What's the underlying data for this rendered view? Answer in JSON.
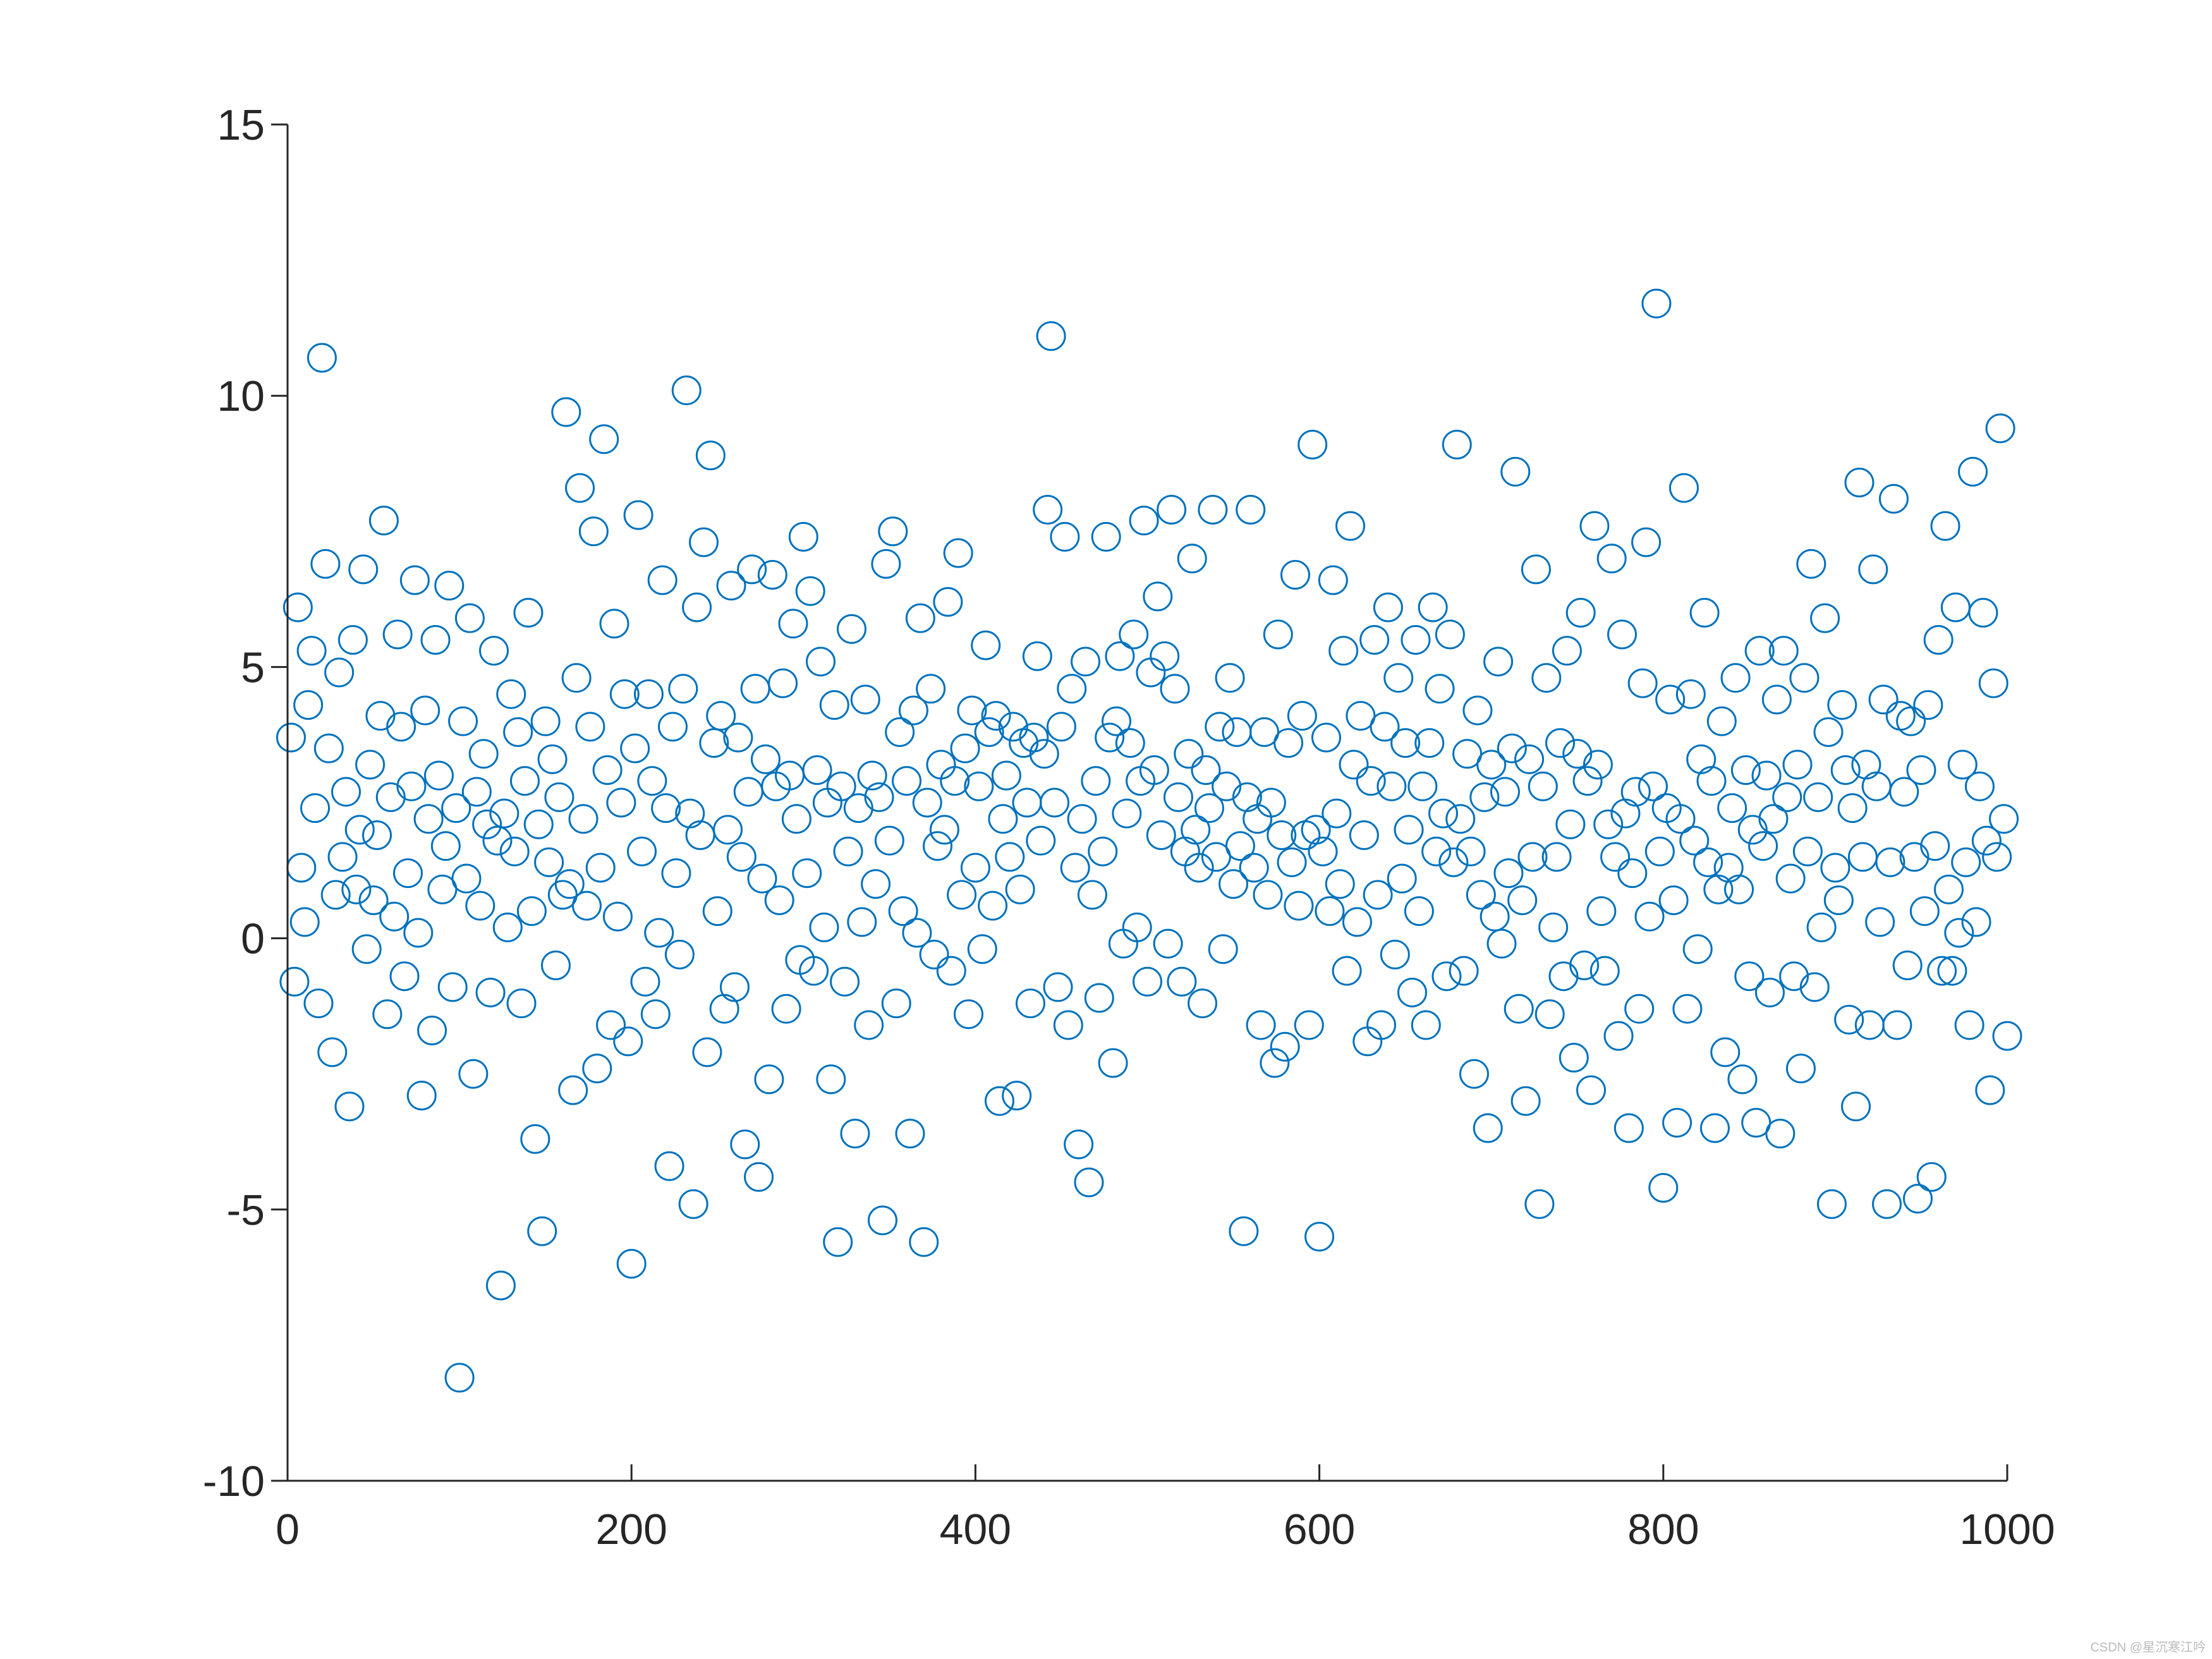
{
  "chart_data": {
    "type": "scatter",
    "x": [
      2,
      4,
      6,
      8,
      10,
      12,
      14,
      16,
      18,
      20,
      22,
      24,
      26,
      28,
      30,
      32,
      34,
      36,
      38,
      40,
      42,
      44,
      46,
      48,
      50,
      52,
      54,
      56,
      58,
      60,
      62,
      64,
      66,
      68,
      70,
      72,
      74,
      76,
      78,
      80,
      82,
      84,
      86,
      88,
      90,
      92,
      94,
      96,
      98,
      100,
      102,
      104,
      106,
      108,
      110,
      112,
      114,
      116,
      118,
      120,
      122,
      124,
      126,
      128,
      130,
      132,
      134,
      136,
      138,
      140,
      142,
      144,
      146,
      148,
      150,
      152,
      154,
      156,
      158,
      160,
      162,
      164,
      166,
      168,
      170,
      172,
      174,
      176,
      178,
      180,
      182,
      184,
      186,
      188,
      190,
      192,
      194,
      196,
      198,
      200,
      202,
      204,
      206,
      208,
      210,
      212,
      214,
      216,
      218,
      220,
      222,
      224,
      226,
      228,
      230,
      232,
      234,
      236,
      238,
      240,
      242,
      244,
      246,
      248,
      250,
      252,
      254,
      256,
      258,
      260,
      262,
      264,
      266,
      268,
      270,
      272,
      274,
      276,
      278,
      280,
      282,
      284,
      286,
      288,
      290,
      292,
      294,
      296,
      298,
      300,
      302,
      304,
      306,
      308,
      310,
      312,
      314,
      316,
      318,
      320,
      322,
      324,
      326,
      328,
      330,
      332,
      334,
      336,
      338,
      340,
      342,
      344,
      346,
      348,
      350,
      352,
      354,
      356,
      358,
      360,
      362,
      364,
      366,
      368,
      370,
      372,
      374,
      376,
      378,
      380,
      382,
      384,
      386,
      388,
      390,
      392,
      394,
      396,
      398,
      400,
      402,
      404,
      406,
      408,
      410,
      412,
      414,
      416,
      418,
      420,
      422,
      424,
      426,
      428,
      430,
      432,
      434,
      436,
      438,
      440,
      442,
      444,
      446,
      448,
      450,
      452,
      454,
      456,
      458,
      460,
      462,
      464,
      466,
      468,
      470,
      472,
      474,
      476,
      478,
      480,
      482,
      484,
      486,
      488,
      490,
      492,
      494,
      496,
      498,
      500,
      502,
      504,
      506,
      508,
      510,
      512,
      514,
      516,
      518,
      520,
      522,
      524,
      526,
      528,
      530,
      532,
      534,
      536,
      538,
      540,
      542,
      544,
      546,
      548,
      550,
      552,
      554,
      556,
      558,
      560,
      562,
      564,
      566,
      568,
      570,
      572,
      574,
      576,
      578,
      580,
      582,
      584,
      586,
      588,
      590,
      592,
      594,
      596,
      598,
      600,
      602,
      604,
      606,
      608,
      610,
      612,
      614,
      616,
      618,
      620,
      622,
      624,
      626,
      628,
      630,
      632,
      634,
      636,
      638,
      640,
      642,
      644,
      646,
      648,
      650,
      652,
      654,
      656,
      658,
      660,
      662,
      664,
      666,
      668,
      670,
      672,
      674,
      676,
      678,
      680,
      682,
      684,
      686,
      688,
      690,
      692,
      694,
      696,
      698,
      700,
      702,
      704,
      706,
      708,
      710,
      712,
      714,
      716,
      718,
      720,
      722,
      724,
      726,
      728,
      730,
      732,
      734,
      736,
      738,
      740,
      742,
      744,
      746,
      748,
      750,
      752,
      754,
      756,
      758,
      760,
      762,
      764,
      766,
      768,
      770,
      772,
      774,
      776,
      778,
      780,
      782,
      784,
      786,
      788,
      790,
      792,
      794,
      796,
      798,
      800,
      802,
      804,
      806,
      808,
      810,
      812,
      814,
      816,
      818,
      820,
      822,
      824,
      826,
      828,
      830,
      832,
      834,
      836,
      838,
      840,
      842,
      844,
      846,
      848,
      850,
      852,
      854,
      856,
      858,
      860,
      862,
      864,
      866,
      868,
      870,
      872,
      874,
      876,
      878,
      880,
      882,
      884,
      886,
      888,
      890,
      892,
      894,
      896,
      898,
      900,
      902,
      904,
      906,
      908,
      910,
      912,
      914,
      916,
      918,
      920,
      922,
      924,
      926,
      928,
      930,
      932,
      934,
      936,
      938,
      940,
      942,
      944,
      946,
      948,
      950,
      952,
      954,
      956,
      958,
      960,
      962,
      964,
      966,
      968,
      970,
      972,
      974,
      976,
      978,
      980,
      982,
      984,
      986,
      988,
      990,
      992,
      994,
      996,
      998,
      1000
    ],
    "values": [
      3.7,
      -0.8,
      6.1,
      1.3,
      0.3,
      4.3,
      5.3,
      2.4,
      -1.2,
      10.7,
      6.9,
      3.5,
      -2.1,
      0.8,
      4.9,
      1.5,
      2.7,
      -3.1,
      5.5,
      0.9,
      2.0,
      6.8,
      -0.2,
      3.2,
      0.7,
      1.9,
      4.1,
      7.7,
      -1.4,
      2.6,
      0.4,
      5.6,
      3.9,
      -0.7,
      1.2,
      2.8,
      6.6,
      0.1,
      -2.9,
      4.2,
      2.2,
      -1.7,
      5.5,
      3.0,
      0.9,
      1.7,
      6.5,
      -0.9,
      2.4,
      -8.1,
      4.0,
      1.1,
      5.9,
      -2.5,
      2.7,
      0.6,
      3.4,
      2.1,
      -1.0,
      5.3,
      1.8,
      -6.4,
      2.3,
      0.2,
      4.5,
      1.6,
      3.8,
      -1.2,
      2.9,
      6.0,
      0.5,
      -3.7,
      2.1,
      -5.4,
      4.0,
      1.4,
      3.3,
      -0.5,
      2.6,
      0.8,
      9.7,
      1.0,
      -2.8,
      4.8,
      8.3,
      2.2,
      0.6,
      3.9,
      7.5,
      -2.4,
      1.3,
      9.2,
      3.1,
      -1.6,
      5.8,
      0.4,
      2.5,
      4.5,
      -1.9,
      -6.0,
      3.5,
      7.8,
      1.6,
      -0.8,
      4.5,
      2.9,
      -1.4,
      0.1,
      6.6,
      2.4,
      -4.2,
      3.9,
      1.2,
      -0.3,
      4.6,
      10.1,
      2.3,
      -4.9,
      6.1,
      1.9,
      7.3,
      -2.1,
      8.9,
      3.6,
      0.5,
      4.1,
      -1.3,
      2.0,
      6.5,
      -0.9,
      3.7,
      1.5,
      -3.8,
      2.7,
      6.8,
      4.6,
      -4.4,
      1.1,
      3.3,
      -2.6,
      6.7,
      2.8,
      0.7,
      4.7,
      -1.3,
      3.0,
      5.8,
      2.2,
      -0.4,
      7.4,
      1.2,
      6.4,
      -0.6,
      3.1,
      5.1,
      0.2,
      2.5,
      -2.6,
      4.3,
      -5.6,
      2.8,
      -0.8,
      1.6,
      5.7,
      -3.6,
      2.4,
      0.3,
      4.4,
      -1.6,
      3.0,
      1.0,
      2.6,
      -5.2,
      6.9,
      1.8,
      7.5,
      -1.2,
      3.8,
      0.5,
      2.9,
      -3.6,
      4.2,
      0.1,
      5.9,
      -5.6,
      2.5,
      4.6,
      -0.3,
      1.7,
      3.2,
      2.0,
      6.2,
      -0.6,
      2.9,
      7.1,
      0.8,
      3.5,
      -1.4,
      4.2,
      1.3,
      2.8,
      -0.2,
      5.4,
      3.8,
      0.6,
      4.1,
      -3.0,
      2.2,
      3.0,
      1.5,
      3.9,
      -2.9,
      0.9,
      3.6,
      2.5,
      -1.2,
      3.7,
      5.2,
      1.8,
      3.4,
      7.9,
      11.1,
      2.5,
      -0.9,
      3.9,
      7.4,
      -1.6,
      4.6,
      1.3,
      -3.8,
      2.2,
      5.1,
      -4.5,
      0.8,
      2.9,
      -1.1,
      1.6,
      7.4,
      3.7,
      -2.3,
      4.0,
      5.2,
      -0.1,
      2.3,
      3.6,
      5.6,
      0.2,
      2.9,
      7.7,
      -0.8,
      4.9,
      3.1,
      6.3,
      1.9,
      5.2,
      -0.1,
      7.9,
      4.6,
      2.6,
      -0.8,
      1.6,
      3.4,
      7.0,
      2.0,
      1.3,
      -1.2,
      3.1,
      2.4,
      7.9,
      1.5,
      3.9,
      -0.2,
      2.8,
      4.8,
      1.0,
      3.8,
      1.7,
      -5.4,
      2.6,
      7.9,
      1.3,
      2.2,
      -1.6,
      3.8,
      0.8,
      2.5,
      -2.3,
      5.6,
      1.9,
      -2.0,
      3.6,
      1.4,
      6.7,
      0.6,
      4.1,
      1.9,
      -1.6,
      9.1,
      2.0,
      -5.5,
      1.6,
      3.7,
      0.5,
      6.6,
      2.3,
      1.0,
      5.3,
      -0.6,
      7.6,
      3.2,
      0.3,
      4.1,
      1.9,
      -1.9,
      2.9,
      5.5,
      0.8,
      -1.6,
      3.9,
      6.1,
      2.8,
      -0.3,
      4.8,
      1.1,
      3.6,
      2.0,
      -1.0,
      5.5,
      0.5,
      2.8,
      -1.6,
      3.6,
      6.1,
      1.6,
      4.6,
      2.3,
      -0.7,
      5.6,
      1.4,
      9.1,
      2.2,
      -0.6,
      3.4,
      1.6,
      -2.5,
      4.2,
      0.8,
      2.6,
      -3.5,
      3.2,
      0.4,
      5.1,
      -0.1,
      2.7,
      1.2,
      3.5,
      8.6,
      -1.3,
      0.7,
      -3.0,
      3.3,
      1.5,
      6.8,
      -4.9,
      2.8,
      4.8,
      -1.4,
      0.2,
      1.5,
      3.6,
      -0.7,
      5.3,
      2.1,
      -2.2,
      3.4,
      6.0,
      -0.5,
      2.9,
      -2.8,
      7.6,
      3.2,
      0.5,
      -0.6,
      2.1,
      7.0,
      1.5,
      -1.8,
      5.6,
      2.3,
      -3.5,
      1.2,
      2.7,
      -1.3,
      4.7,
      7.3,
      0.4,
      2.8,
      11.7,
      1.6,
      -4.6,
      2.4,
      4.4,
      0.7,
      -3.4,
      2.2,
      8.3,
      -1.3,
      4.5,
      1.8,
      -0.2,
      3.3,
      6.0,
      1.4,
      2.9,
      -3.5,
      0.9,
      4.0,
      -2.1,
      1.3,
      2.4,
      4.8,
      0.9,
      -2.6,
      3.1,
      -0.7,
      2.0,
      -3.4,
      5.3,
      1.7,
      3.0,
      -1.0,
      2.2,
      4.4,
      -3.6,
      5.3,
      2.6,
      1.1,
      -0.7,
      3.2,
      -2.4,
      4.8,
      1.6,
      6.9,
      -0.9,
      2.6,
      0.2,
      5.9,
      3.8,
      -4.9,
      1.3,
      0.7,
      4.3,
      3.1,
      -1.5,
      2.4,
      -3.1,
      8.4,
      1.5,
      3.2,
      -1.6,
      6.8,
      2.8,
      0.3,
      4.4,
      -4.9,
      1.4,
      8.1,
      -1.6,
      4.1,
      2.7,
      -0.5,
      4.0,
      1.5,
      -4.8,
      3.1,
      0.5,
      4.3,
      -4.4,
      1.7,
      5.5,
      -0.6,
      7.6,
      0.9,
      -0.6,
      6.1,
      0.1,
      3.2,
      1.4,
      -1.6,
      8.6,
      0.3,
      2.8,
      6.0,
      1.8,
      -2.8,
      4.7,
      1.5,
      9.4,
      2.2,
      -1.8
    ],
    "color": "#0072bd",
    "xlim": [
      0,
      1000
    ],
    "xticks": [
      0,
      200,
      400,
      600,
      800,
      1000
    ],
    "ylim": [
      -10,
      15
    ],
    "yticks": [
      -10,
      -5,
      0,
      5,
      10,
      15
    ],
    "grid": false,
    "watermark": "CSDN @星沉寒江吟"
  }
}
